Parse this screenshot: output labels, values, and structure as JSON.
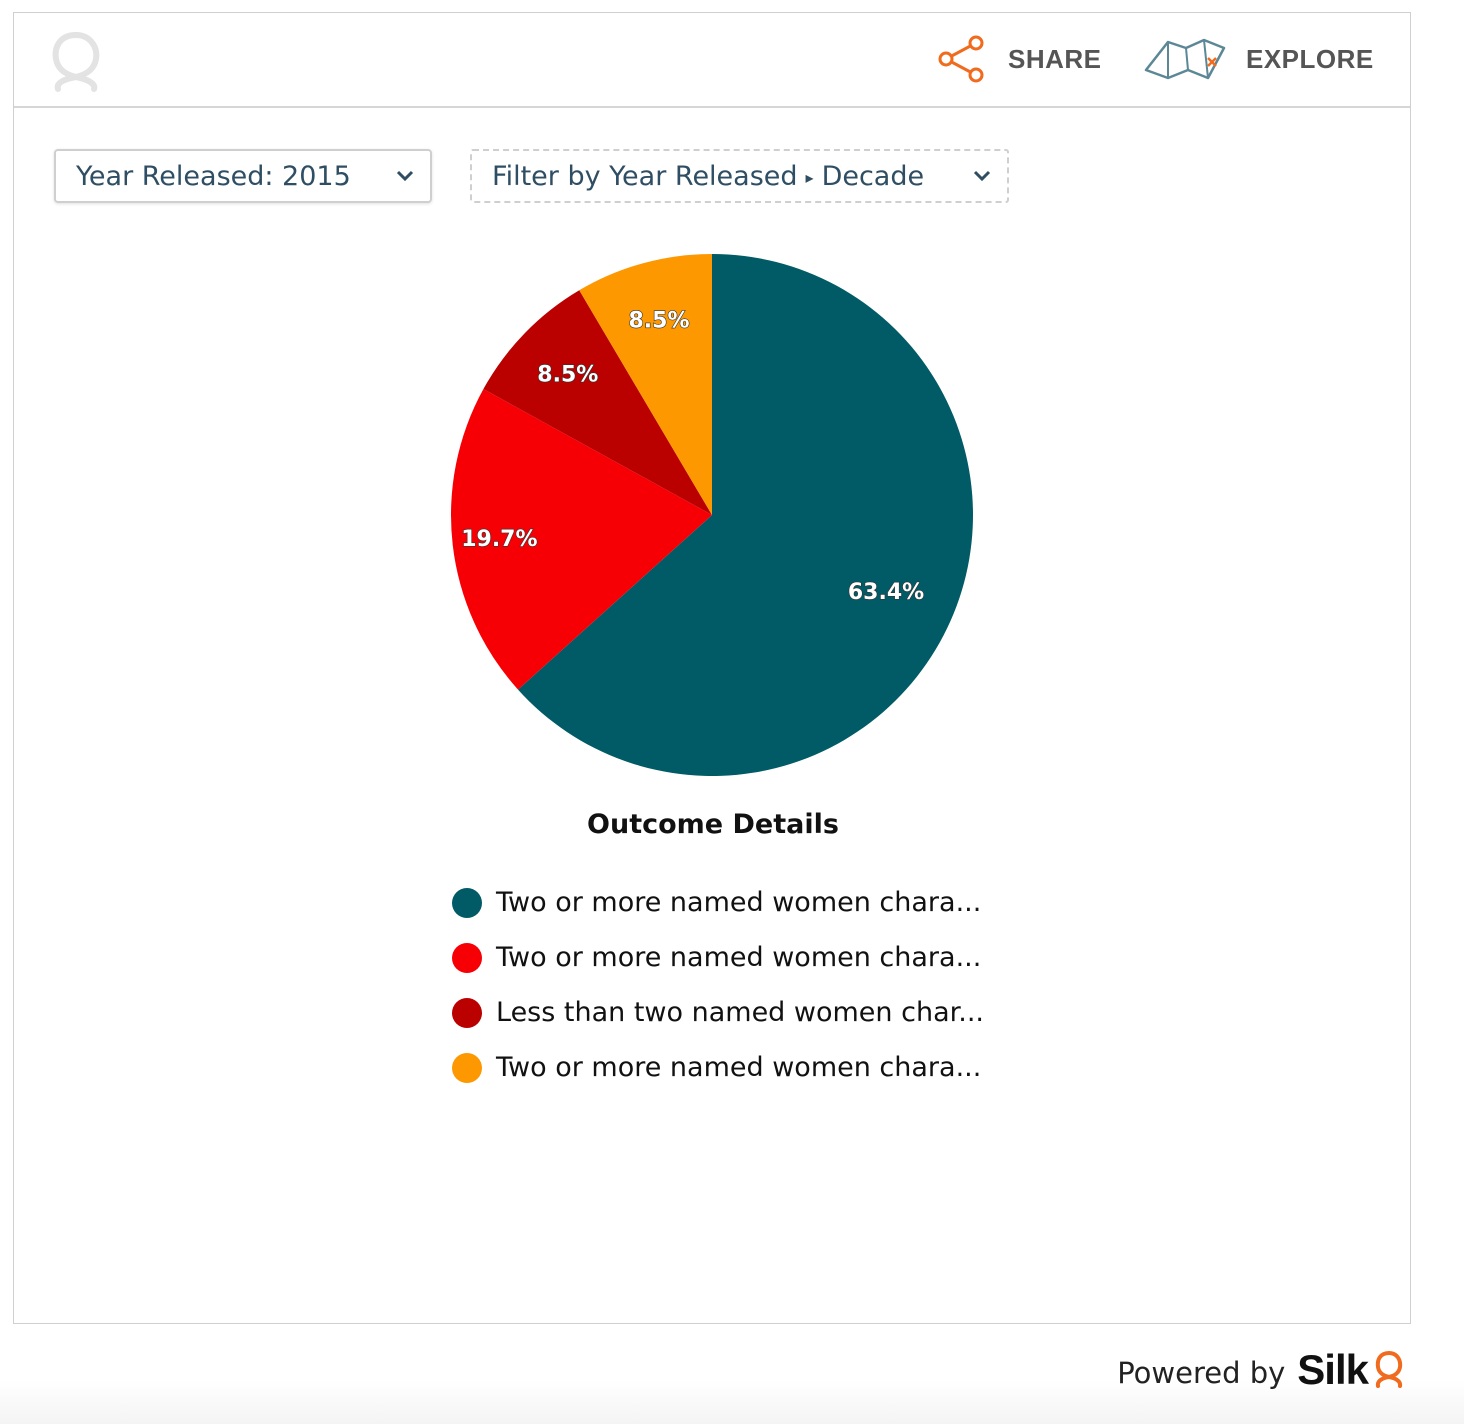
{
  "toolbar": {
    "share_label": "SHARE",
    "explore_label": "EXPLORE"
  },
  "filters": {
    "year_released": "Year Released: 2015",
    "filter_prefix": "Filter by Year Released",
    "filter_caret": "▸",
    "filter_suffix": "Decade"
  },
  "chart_data": {
    "type": "pie",
    "title": "Outcome Details",
    "slices": [
      {
        "label": "Two or more named women chara...",
        "value": 63.4,
        "value_label": "63.4%",
        "color": "#015b66"
      },
      {
        "label": "Two or more named women chara...",
        "value": 19.7,
        "value_label": "19.7%",
        "color": "#f70005"
      },
      {
        "label": "Less than two named women char...",
        "value": 8.5,
        "value_label": "8.5%",
        "color": "#bb0000"
      },
      {
        "label": "Two or more named women chara...",
        "value": 8.5,
        "value_label": "8.5%",
        "color": "#fd9800"
      }
    ],
    "legend_position": "bottom"
  },
  "footer": {
    "powered_by": "Powered by",
    "brand": "Silk"
  },
  "colors": {
    "accent": "#f06b1d",
    "text_dark": "#2f4e64"
  }
}
